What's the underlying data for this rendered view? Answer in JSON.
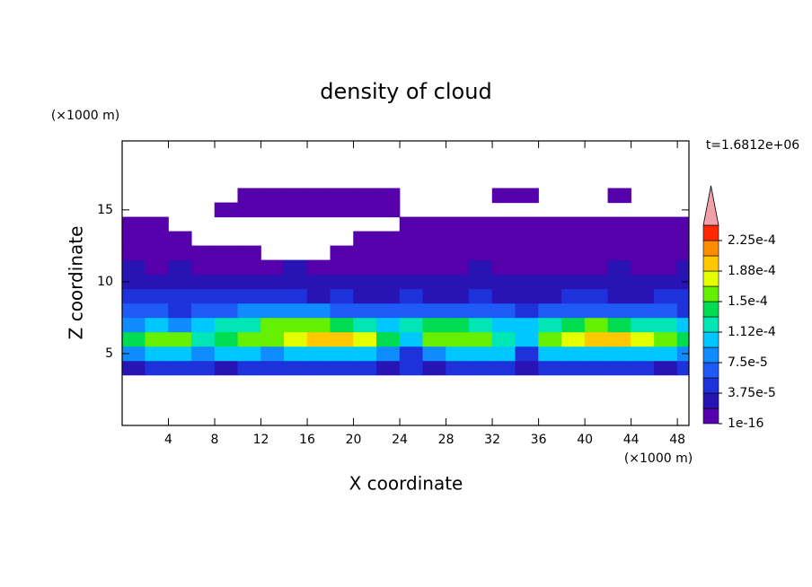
{
  "chart_data": {
    "type": "contour",
    "title": "density of cloud",
    "xlabel": "X coordinate",
    "ylabel": "Z coordinate",
    "x_unit": "(×1000 m)",
    "y_unit": "(×1000 m)",
    "annotation": "t=1.6812e+06",
    "xlim": [
      0,
      49
    ],
    "ylim": [
      0,
      19.8
    ],
    "xticks": [
      4,
      8,
      12,
      16,
      20,
      24,
      28,
      32,
      36,
      40,
      44,
      48
    ],
    "yticks": [
      5,
      10,
      15
    ],
    "x": [
      1,
      3,
      5,
      7,
      9,
      11,
      13,
      15,
      17,
      19,
      21,
      23,
      25,
      27,
      29,
      31,
      33,
      35,
      37,
      39,
      41,
      43,
      45,
      47,
      49
    ],
    "y": [
      4,
      5,
      6,
      7,
      8,
      9,
      10,
      11,
      12,
      13,
      14,
      15,
      16
    ],
    "z": [
      [
        3e-05,
        4e-05,
        4e-05,
        4e-05,
        3e-05,
        4e-05,
        4e-05,
        4e-05,
        4e-05,
        4e-05,
        4e-05,
        3e-05,
        4e-05,
        2e-05,
        4e-05,
        4e-05,
        4e-05,
        2e-05,
        4e-05,
        4e-05,
        4e-05,
        4e-05,
        4e-05,
        3e-05,
        4e-05
      ],
      [
        9e-05,
        0.0001,
        0.0001,
        9e-05,
        0.0001,
        0.0001,
        9e-05,
        0.0001,
        0.0001,
        0.00011,
        0.0001,
        9e-05,
        5e-05,
        8e-05,
        0.0001,
        0.0001,
        0.0001,
        5e-05,
        0.0001,
        0.00011,
        0.00011,
        0.0001,
        0.0001,
        0.0001,
        9e-05
      ],
      [
        0.00014,
        0.00016,
        0.00015,
        0.00013,
        0.00014,
        0.00015,
        0.00016,
        0.00018,
        0.00019,
        0.00019,
        0.00017,
        0.00014,
        0.00011,
        0.00015,
        0.00016,
        0.00015,
        0.00013,
        0.0001,
        0.00016,
        0.00018,
        0.0002,
        0.00019,
        0.00017,
        0.00016,
        0.00014
      ],
      [
        9e-05,
        0.0001,
        9e-05,
        0.0001,
        0.00012,
        0.00013,
        0.00015,
        0.00016,
        0.00015,
        0.00014,
        0.00012,
        0.0001,
        0.00012,
        0.00014,
        0.00014,
        0.00013,
        0.00011,
        0.0001,
        0.00013,
        0.00014,
        0.00015,
        0.00014,
        0.00013,
        0.00012,
        0.0001
      ],
      [
        6e-05,
        6e-05,
        5e-05,
        6e-05,
        7e-05,
        8e-05,
        9e-05,
        8e-05,
        8e-05,
        7e-05,
        6e-05,
        6e-05,
        7e-05,
        6e-05,
        6e-05,
        6e-05,
        6e-05,
        5e-05,
        6e-05,
        6e-05,
        7e-05,
        6e-05,
        6e-05,
        6e-05,
        5e-05
      ],
      [
        4e-05,
        5e-05,
        4e-05,
        4e-05,
        4e-05,
        4e-05,
        4e-05,
        4e-05,
        3e-05,
        4e-05,
        3e-05,
        3e-05,
        4e-05,
        3e-05,
        3e-05,
        4e-05,
        3e-05,
        3e-05,
        3e-05,
        4e-05,
        4e-05,
        3e-05,
        3e-05,
        4e-05,
        4e-05
      ],
      [
        3e-05,
        3e-05,
        2e-05,
        3e-05,
        3e-05,
        2e-05,
        3e-05,
        2e-05,
        2e-05,
        3e-05,
        2e-05,
        2e-05,
        3e-05,
        2e-05,
        3e-05,
        2e-05,
        2e-05,
        2e-05,
        3e-05,
        3e-05,
        2e-05,
        2e-05,
        3e-05,
        3e-05,
        3e-05
      ],
      [
        2e-05,
        1e-05,
        2e-05,
        1e-05,
        1e-05,
        1e-05,
        1e-05,
        2e-05,
        1e-05,
        1e-05,
        1e-05,
        1e-05,
        1e-05,
        1e-05,
        1e-05,
        2e-05,
        1e-05,
        1e-05,
        1e-05,
        1e-05,
        1e-05,
        2e-05,
        1e-05,
        1e-05,
        2e-05
      ],
      [
        1e-05,
        1e-05,
        1e-05,
        1e-05,
        1e-05,
        1e-05,
        null,
        null,
        null,
        1e-05,
        1e-05,
        1e-05,
        1e-05,
        1e-05,
        1e-05,
        1e-05,
        1e-05,
        1e-05,
        1e-05,
        1e-05,
        1e-05,
        1e-05,
        1e-05,
        1e-05,
        1e-05
      ],
      [
        1e-05,
        1e-05,
        1e-05,
        null,
        null,
        null,
        null,
        null,
        null,
        null,
        1e-05,
        1e-05,
        1e-05,
        1e-05,
        1e-05,
        1e-05,
        1e-05,
        1e-05,
        1e-05,
        1e-05,
        1e-05,
        1e-05,
        1e-05,
        1e-05,
        1e-05
      ],
      [
        1e-05,
        1e-05,
        null,
        null,
        null,
        null,
        null,
        null,
        null,
        null,
        null,
        null,
        1e-05,
        1e-05,
        1e-05,
        1e-05,
        1e-05,
        1e-05,
        1e-05,
        1e-05,
        1e-05,
        1e-05,
        1e-05,
        1e-05,
        1e-05
      ],
      [
        null,
        null,
        null,
        null,
        1e-05,
        1e-05,
        1e-05,
        1e-05,
        1e-05,
        1e-05,
        1e-05,
        1e-05,
        null,
        null,
        null,
        null,
        null,
        null,
        null,
        null,
        null,
        null,
        null,
        null,
        null
      ],
      [
        null,
        null,
        null,
        null,
        null,
        1e-05,
        1e-05,
        1e-05,
        1e-05,
        1e-05,
        1e-05,
        1e-05,
        null,
        null,
        null,
        null,
        1e-05,
        1e-05,
        null,
        null,
        null,
        1e-05,
        null,
        null,
        null
      ]
    ],
    "colorbar": {
      "levels": [
        1e-16,
        1.875e-05,
        3.75e-05,
        5.625e-05,
        7.5e-05,
        9.375e-05,
        0.0001125,
        0.00013125,
        0.00015,
        0.00016875,
        0.0001875,
        0.00020625,
        0.000225,
        0.00024375
      ],
      "colors": [
        "#5500aa",
        "#2814b4",
        "#1e32dc",
        "#1e5af5",
        "#0f8cff",
        "#00c8ff",
        "#00e6b4",
        "#00dc50",
        "#64f000",
        "#e6ff00",
        "#ffc800",
        "#ff8c00",
        "#ff2800"
      ],
      "extend_color": "#f0a0a8",
      "ticks": [
        1e-16,
        {
          "value": 3.75e-05,
          "label": "3.75e-5"
        },
        {
          "value": 7.5e-05,
          "label": "7.5e-5"
        },
        {
          "value": 0.0001125,
          "label": "1.12e-4"
        },
        {
          "value": 0.00015,
          "label": "1.5e-4"
        },
        {
          "value": 0.0001875,
          "label": "1.88e-4"
        },
        {
          "value": 0.000225,
          "label": "2.25e-4"
        }
      ]
    }
  }
}
